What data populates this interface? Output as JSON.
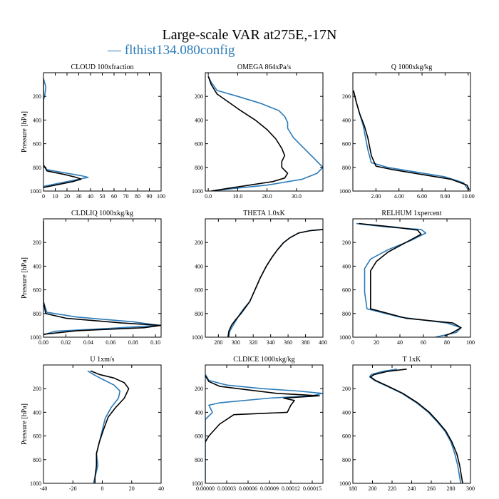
{
  "title": "Large-scale VAR at275E,-17N",
  "legend": {
    "label": "— flthist134.080config",
    "color": "#2b7bb9"
  },
  "colors": {
    "line1": "#2b7bb9",
    "line2": "#000000",
    "axis": "#000000"
  },
  "chart_data": [
    {
      "type": "line",
      "title": "CLOUD  100xfraction",
      "ylabel": "Pressure [hPa]",
      "xlim": [
        0,
        100
      ],
      "ylim": [
        1000,
        0
      ],
      "xticks": [
        0,
        10,
        20,
        30,
        40,
        50,
        60,
        70,
        80,
        90,
        100
      ],
      "xtick_labels": [
        "0",
        "10",
        "20",
        "30",
        "40",
        "50",
        "60",
        "70",
        "80",
        "90",
        "100"
      ],
      "yticks": [
        200,
        400,
        600,
        800,
        1000
      ],
      "ytick_labels": [
        "200",
        "400",
        "600",
        "800",
        "1000"
      ],
      "series": [
        {
          "color": "#2b7bb9",
          "x": [
            0,
            2,
            1,
            0,
            0,
            0,
            3,
            20,
            32,
            38,
            30,
            15,
            0
          ],
          "y": [
            50,
            120,
            200,
            230,
            400,
            780,
            820,
            850,
            870,
            885,
            900,
            930,
            960
          ]
        },
        {
          "color": "#000000",
          "x": [
            0,
            0,
            0,
            0,
            3,
            18,
            28,
            32,
            25,
            10,
            0
          ],
          "y": [
            50,
            200,
            400,
            780,
            830,
            860,
            885,
            900,
            920,
            950,
            970
          ]
        }
      ]
    },
    {
      "type": "line",
      "title": "OMEGA  864xPa/s",
      "ylabel": "",
      "xlim": [
        -1,
        39
      ],
      "ylim": [
        1000,
        0
      ],
      "xticks": [
        0,
        10,
        20,
        30
      ],
      "xtick_labels": [
        "0.0",
        "10.0",
        "20.0",
        "30.0"
      ],
      "yticks": [
        200,
        400,
        600,
        800,
        1000
      ],
      "ytick_labels": [
        "200",
        "400",
        "600",
        "800",
        "1000"
      ],
      "series": [
        {
          "color": "#2b7bb9",
          "x": [
            0,
            1,
            3,
            10,
            18,
            24,
            26,
            27,
            27,
            29,
            33,
            37,
            39,
            37,
            32,
            20,
            8,
            1
          ],
          "y": [
            30,
            80,
            150,
            200,
            260,
            320,
            370,
            420,
            470,
            550,
            650,
            750,
            800,
            850,
            900,
            950,
            980,
            1000
          ]
        },
        {
          "color": "#000000",
          "x": [
            0,
            1,
            3,
            7,
            11,
            16,
            20,
            23,
            25,
            26,
            25,
            25,
            27,
            26,
            22,
            14,
            6,
            1
          ],
          "y": [
            30,
            100,
            180,
            250,
            320,
            400,
            480,
            560,
            640,
            700,
            750,
            800,
            850,
            890,
            920,
            950,
            980,
            1000
          ]
        }
      ]
    },
    {
      "type": "line",
      "title": "Q  1000xkg/kg",
      "ylabel": "",
      "xlim": [
        0,
        10.2
      ],
      "ylim": [
        1000,
        0
      ],
      "xticks": [
        2,
        4,
        6,
        8,
        10
      ],
      "xtick_labels": [
        "2.00",
        "4.00",
        "6.00",
        "8.00",
        "10.00"
      ],
      "yticks": [
        200,
        400,
        600,
        800,
        1000
      ],
      "ytick_labels": [
        "200",
        "400",
        "600",
        "800",
        "1000"
      ],
      "series": [
        {
          "color": "#2b7bb9",
          "x": [
            0.05,
            0.3,
            0.6,
            0.9,
            1.1,
            1.3,
            1.6,
            3,
            5.5,
            8,
            9.6,
            10
          ],
          "y": [
            150,
            250,
            350,
            450,
            550,
            650,
            760,
            800,
            840,
            880,
            930,
            990
          ]
        },
        {
          "color": "#000000",
          "x": [
            0.05,
            0.3,
            0.6,
            1,
            1.3,
            1.5,
            1.6,
            2,
            3.5,
            6,
            8.5,
            9.9,
            10.1
          ],
          "y": [
            150,
            250,
            350,
            450,
            550,
            650,
            700,
            790,
            820,
            860,
            900,
            950,
            990
          ]
        }
      ]
    },
    {
      "type": "line",
      "title": "CLDLIQ  1000xkg/kg",
      "ylabel": "Pressure [hPa]",
      "xlim": [
        0,
        0.105
      ],
      "ylim": [
        1000,
        0
      ],
      "xticks": [
        0,
        0.02,
        0.04,
        0.06,
        0.08,
        0.1
      ],
      "xtick_labels": [
        "0.00",
        "0.02",
        "0.04",
        "0.06",
        "0.08",
        "0.10"
      ],
      "yticks": [
        200,
        400,
        600,
        800,
        1000
      ],
      "ytick_labels": [
        "200",
        "400",
        "600",
        "800",
        "1000"
      ],
      "series": [
        {
          "color": "#2b7bb9",
          "x": [
            0,
            0,
            0.003,
            0.03,
            0.08,
            0.103,
            0.06,
            0.01,
            0
          ],
          "y": [
            20,
            700,
            790,
            830,
            870,
            900,
            925,
            950,
            980
          ]
        },
        {
          "color": "#000000",
          "x": [
            0,
            0,
            0.002,
            0.02,
            0.07,
            0.105,
            0.09,
            0.03,
            0
          ],
          "y": [
            20,
            700,
            800,
            840,
            880,
            900,
            920,
            945,
            975
          ]
        }
      ]
    },
    {
      "type": "line",
      "title": "THETA  1.0xK",
      "ylabel": "",
      "xlim": [
        265,
        400
      ],
      "ylim": [
        1000,
        0
      ],
      "xticks": [
        280,
        300,
        320,
        340,
        360,
        380,
        400
      ],
      "xtick_labels": [
        "280",
        "300",
        "320",
        "340",
        "360",
        "380",
        "400"
      ],
      "yticks": [
        200,
        400,
        600,
        800,
        1000
      ],
      "ytick_labels": [
        "200",
        "400",
        "600",
        "800",
        "1000"
      ],
      "series": [
        {
          "color": "#2b7bb9",
          "x": [
            292,
            293,
            297,
            301,
            305,
            310,
            316,
            322,
            328,
            335,
            342,
            348,
            355,
            362,
            372,
            385,
            400
          ],
          "y": [
            1000,
            950,
            900,
            850,
            800,
            750,
            700,
            600,
            500,
            400,
            320,
            260,
            200,
            160,
            120,
            100,
            90
          ]
        },
        {
          "color": "#000000",
          "x": [
            291,
            292,
            295,
            300,
            306,
            311,
            316,
            322,
            328,
            335,
            342,
            348,
            355,
            362,
            372,
            385,
            400
          ],
          "y": [
            1000,
            950,
            900,
            850,
            800,
            750,
            700,
            600,
            500,
            400,
            320,
            260,
            200,
            160,
            120,
            100,
            90
          ]
        }
      ]
    },
    {
      "type": "line",
      "title": "RELHUM  1xpercent",
      "ylabel": "",
      "xlim": [
        0,
        100
      ],
      "ylim": [
        1000,
        0
      ],
      "xticks": [
        0,
        20,
        40,
        60,
        80,
        100
      ],
      "xtick_labels": [
        "0",
        "20",
        "40",
        "60",
        "80",
        "100"
      ],
      "yticks": [
        200,
        400,
        600,
        800,
        1000
      ],
      "ytick_labels": [
        "200",
        "400",
        "600",
        "800",
        "1000"
      ],
      "series": [
        {
          "color": "#2b7bb9",
          "x": [
            3,
            30,
            58,
            62,
            50,
            30,
            15,
            10,
            10,
            10,
            12,
            40,
            80,
            92,
            88,
            70
          ],
          "y": [
            40,
            70,
            90,
            120,
            180,
            260,
            340,
            420,
            520,
            620,
            760,
            830,
            880,
            920,
            960,
            1000
          ]
        },
        {
          "color": "#000000",
          "x": [
            5,
            35,
            55,
            58,
            45,
            30,
            20,
            15,
            15,
            15,
            15,
            45,
            85,
            92,
            85,
            78
          ],
          "y": [
            40,
            70,
            95,
            130,
            200,
            280,
            360,
            440,
            540,
            640,
            760,
            840,
            880,
            920,
            960,
            990
          ]
        }
      ]
    },
    {
      "type": "line",
      "title": "U  1xm/s",
      "ylabel": "Pressure [hPa]",
      "xlim": [
        -40,
        40
      ],
      "ylim": [
        1000,
        0
      ],
      "xticks": [
        -40,
        -20,
        0,
        20,
        40
      ],
      "xtick_labels": [
        "-40",
        "-20",
        "0",
        "20",
        "40"
      ],
      "yticks": [
        200,
        400,
        600,
        800,
        1000
      ],
      "ytick_labels": [
        "200",
        "400",
        "600",
        "800",
        "1000"
      ],
      "series": [
        {
          "color": "#2b7bb9",
          "x": [
            -10,
            -6,
            0,
            8,
            12,
            11,
            6,
            2,
            0,
            -2,
            -4,
            -3,
            -5,
            -6
          ],
          "y": [
            50,
            80,
            120,
            170,
            220,
            280,
            360,
            450,
            550,
            650,
            750,
            850,
            950,
            1000
          ]
        },
        {
          "color": "#000000",
          "x": [
            -8,
            -2,
            8,
            15,
            18,
            15,
            9,
            4,
            1,
            -2,
            -4,
            -4,
            -5,
            -5
          ],
          "y": [
            50,
            80,
            110,
            150,
            200,
            280,
            360,
            440,
            540,
            650,
            750,
            850,
            950,
            1000
          ]
        }
      ]
    },
    {
      "type": "line",
      "title": "CLDICE  1000xkg/kg",
      "ylabel": "",
      "xlim": [
        0,
        0.000165
      ],
      "ylim": [
        1000,
        0
      ],
      "xticks": [
        0,
        3e-05,
        6e-05,
        9e-05,
        0.00012,
        0.00015
      ],
      "xtick_labels": [
        "0.00000",
        "0.00003",
        "0.00006",
        "0.00009",
        "0.00012",
        "0.00015"
      ],
      "yticks": [
        200,
        400,
        600,
        800,
        1000
      ],
      "ytick_labels": [
        "200",
        "400",
        "600",
        "800",
        "1000"
      ],
      "series": [
        {
          "color": "#2b7bb9",
          "x": [
            0,
            5e-06,
            3e-05,
            8e-05,
            0.00013,
            0.000164,
            0.00015,
            9e-05,
            2e-05,
            5e-06,
            1e-05,
            0,
            0
          ],
          "y": [
            80,
            130,
            170,
            200,
            220,
            240,
            260,
            280,
            320,
            340,
            400,
            460,
            1000
          ]
        },
        {
          "color": "#000000",
          "x": [
            0,
            5e-06,
            2e-05,
            6e-05,
            0.0001,
            0.00016,
            0.00011,
            0.000125,
            0.00012,
            0.000115,
            4e-05,
            2e-05,
            5e-06,
            0
          ],
          "y": [
            90,
            140,
            180,
            210,
            240,
            260,
            280,
            300,
            340,
            400,
            420,
            500,
            600,
            650
          ]
        }
      ]
    },
    {
      "type": "line",
      "title": "T  1xK",
      "ylabel": "",
      "xlim": [
        180,
        300
      ],
      "ylim": [
        1000,
        0
      ],
      "xticks": [
        180,
        200,
        220,
        240,
        260,
        280,
        300
      ],
      "xtick_labels": [
        "180",
        "200",
        "220",
        "240",
        "260",
        "280",
        "300"
      ],
      "yticks": [
        200,
        400,
        600,
        800,
        1000
      ],
      "ytick_labels": [
        "200",
        "400",
        "600",
        "800",
        "1000"
      ],
      "series": [
        {
          "color": "#2b7bb9",
          "x": [
            225,
            210,
            199,
            197,
            202,
            215,
            230,
            245,
            257,
            266,
            274,
            280,
            284,
            287,
            289,
            290
          ],
          "y": [
            35,
            55,
            80,
            100,
            130,
            180,
            240,
            320,
            400,
            480,
            560,
            650,
            750,
            850,
            950,
            1000
          ]
        },
        {
          "color": "#000000",
          "x": [
            235,
            215,
            202,
            198,
            203,
            216,
            231,
            246,
            258,
            267,
            275,
            281,
            286,
            289,
            291,
            292
          ],
          "y": [
            35,
            55,
            80,
            100,
            130,
            180,
            240,
            320,
            400,
            480,
            560,
            650,
            750,
            850,
            950,
            1000
          ]
        }
      ]
    }
  ]
}
